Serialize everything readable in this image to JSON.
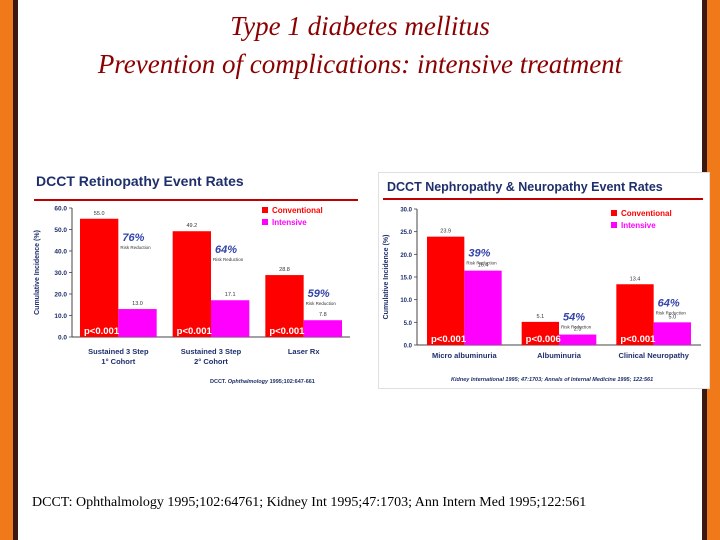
{
  "slide": {
    "title_line1": "Type 1 diabetes mellitus",
    "title_line2": "Prevention of complications: intensive treatment",
    "footer": "DCCT: Ophthalmology 1995;102:64761; Kidney Int 1995;47:1703; Ann Intern Med 1995;122:561",
    "colors": {
      "border_orange": "#f07a1a",
      "border_dark": "#3a1a10",
      "title": "#8b0000",
      "conventional": "#ff0000",
      "intensive": "#ff00ff",
      "header_rule": "#c00000"
    }
  },
  "chart_data": [
    {
      "type": "bar",
      "title": "DCCT Retinopathy Event Rates",
      "ylabel": "Cumulative Incidence (%)",
      "ylim": [
        0,
        60
      ],
      "yticks": [
        "0.0",
        "10.0",
        "20.0",
        "30.0",
        "40.0",
        "50.0",
        "60.0"
      ],
      "categories": [
        {
          "line1": "Sustained 3 Step",
          "line2": "1° Cohort"
        },
        {
          "line1": "Sustained 3 Step",
          "line2": "2° Cohort"
        },
        {
          "line1": "Laser Rx",
          "line2": ""
        }
      ],
      "series": [
        {
          "name": "Conventional",
          "values": [
            55.0,
            49.2,
            28.8
          ],
          "labels": [
            "55.0",
            "49.2",
            "28.8"
          ]
        },
        {
          "name": "Intensive",
          "values": [
            13.0,
            17.1,
            7.8
          ],
          "labels": [
            "13.0",
            "17.1",
            "7.8"
          ]
        }
      ],
      "risk_reduction": [
        "76%",
        "64%",
        "59%"
      ],
      "risk_reduction_label": "Risk Reduction",
      "p_values": [
        "p<0.001",
        "p<0.001",
        "p<0.001"
      ],
      "source_prefix": "DCCT.",
      "source_italic": "Ophthalmology",
      "source_rest": "1995;102:647-661",
      "legend": "top-right"
    },
    {
      "type": "bar",
      "title": "DCCT Nephropathy & Neuropathy Event Rates",
      "ylabel": "Cumulative Incidence (%)",
      "ylim": [
        0,
        30
      ],
      "yticks": [
        "0.0",
        "5.0",
        "10.0",
        "15.0",
        "20.0",
        "25.0",
        "30.0"
      ],
      "categories": [
        {
          "line1": "Micro albuminuria",
          "line2": ""
        },
        {
          "line1": "Albuminuria",
          "line2": ""
        },
        {
          "line1": "Clinical Neuropathy",
          "line2": ""
        }
      ],
      "series": [
        {
          "name": "Conventional",
          "values": [
            23.9,
            5.1,
            13.4
          ],
          "labels": [
            "23.9",
            "5.1",
            "13.4"
          ]
        },
        {
          "name": "Intensive",
          "values": [
            16.4,
            2.3,
            5.0
          ],
          "labels": [
            "16.4",
            "2.3",
            "5.0"
          ]
        }
      ],
      "risk_reduction": [
        "39%",
        "54%",
        "64%"
      ],
      "risk_reduction_label": "Risk Reduction",
      "p_values": [
        "p<0.001",
        "p<0.006",
        "p<0.001"
      ],
      "source_text": "Kidney International 1995; 47:1703; Annals of Internal Medicine 1995; 122:561",
      "legend": "top-right"
    }
  ]
}
